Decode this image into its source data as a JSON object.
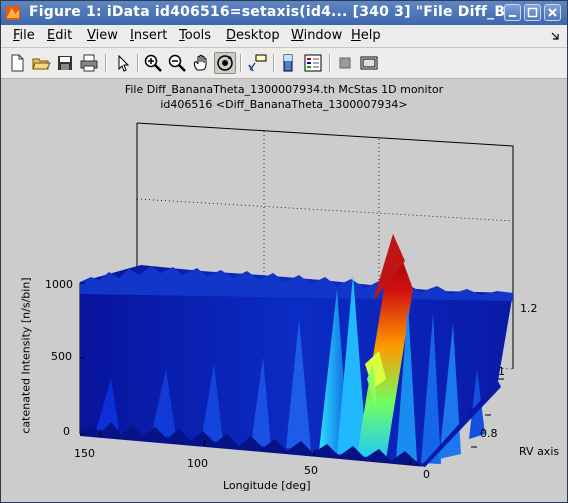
{
  "window": {
    "title": "Figure 1: iData id406516=setaxis(id4... [340    3] \"File Diff_Ba",
    "buttons": [
      "minimize",
      "maximize",
      "close"
    ]
  },
  "menu": [
    {
      "label": "File",
      "key": "F"
    },
    {
      "label": "Edit",
      "key": "E"
    },
    {
      "label": "View",
      "key": "V"
    },
    {
      "label": "Insert",
      "key": "I"
    },
    {
      "label": "Tools",
      "key": "T"
    },
    {
      "label": "Desktop",
      "key": "D"
    },
    {
      "label": "Window",
      "key": "W"
    },
    {
      "label": "Help",
      "key": "H"
    }
  ],
  "toolbar": {
    "icons": [
      "new-figure-icon",
      "open-file-icon",
      "save-icon",
      "print-icon",
      "pointer-icon",
      "zoom-in-icon",
      "zoom-out-icon",
      "pan-hand-icon",
      "rotate-3d-icon",
      "data-cursor-icon",
      "colorbar-icon",
      "legend-icon",
      "hide-plot-tools-icon",
      "show-plot-tools-icon"
    ],
    "pressed": "rotate-3d-icon"
  },
  "plot": {
    "title_line1": "File Diff_BananaTheta_1300007934.th McStas 1D monitor",
    "title_line2": "id406516 <Diff_BananaTheta_1300007934>",
    "zlabel": "catenated Intensity [n/s/bin]",
    "xlabel": "Longitude [deg]",
    "ylabel": "RV axis",
    "z_ticks": [
      "1000",
      "500",
      "0"
    ],
    "x_ticks": [
      "150",
      "100",
      "50",
      "0"
    ],
    "y_ticks": [
      "1.2",
      "1",
      "0.8"
    ]
  },
  "chart_data": {
    "type": "surface",
    "title": "File Diff_BananaTheta_1300007934.th McStas 1D monitor\nid406516 <Diff_BananaTheta_1300007934>",
    "xlabel": "Longitude [deg]",
    "ylabel": "RV axis",
    "zlabel": "catenated Intensity [n/s/bin]",
    "xlim": [
      -5,
      175
    ],
    "ylim": [
      0.7,
      1.25
    ],
    "zlim": [
      0,
      1000
    ],
    "x_ticks": [
      150,
      100,
      50,
      0
    ],
    "y_ticks": [
      0.8,
      1,
      1.2
    ],
    "z_ticks": [
      0,
      500,
      1000
    ],
    "grid": true,
    "colormap": "jet",
    "peaks": [
      {
        "longitude": 40,
        "intensity": 1100
      },
      {
        "longitude": 45,
        "intensity": 600
      },
      {
        "longitude": 55,
        "intensity": 550
      },
      {
        "longitude": 25,
        "intensity": 500
      },
      {
        "longitude": 80,
        "intensity": 300
      },
      {
        "longitude": 100,
        "intensity": 250
      },
      {
        "longitude": 130,
        "intensity": 150
      }
    ],
    "baseline_intensity": 80
  }
}
